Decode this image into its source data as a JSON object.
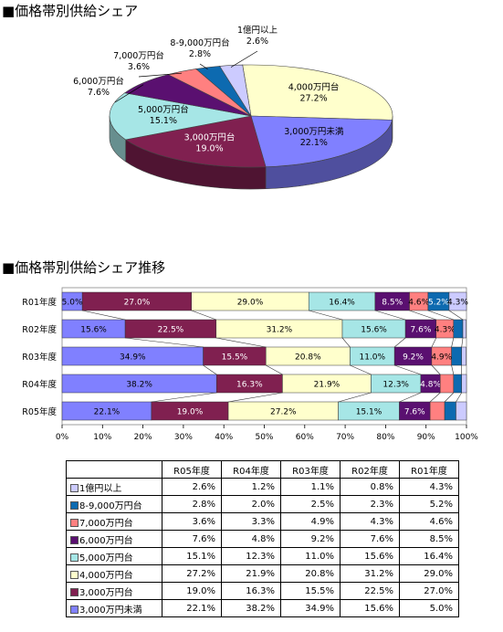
{
  "sections": {
    "pie_title": "■価格帯別供給シェア",
    "bar_title": "■価格帯別供給シェア推移"
  },
  "categories": [
    "3,000万円未満",
    "4,000万円台",
    "5,000万円台",
    "6,000万円台",
    "7,000万円台",
    "8-9,000万円台",
    "1億円以上"
  ],
  "legend_labels": [
    "1億円以上",
    "8-9,000万円台",
    "7,000万円台",
    "6,000万円台",
    "5,000万円台",
    "4,000万円台",
    "3,000万円台",
    "3,000万円未満"
  ],
  "colors": {
    "3,000万円未満": "#8080ff",
    "3,000万円台": "#802050",
    "4,000万円台": "#ffffcc",
    "5,000万円台": "#a6e6e6",
    "6,000万円台": "#5a1070",
    "7,000万円台": "#ff8080",
    "8-9,000万円台": "#0d6ab0",
    "1億円以上": "#cccbff"
  },
  "chart_data": [
    {
      "type": "pie",
      "slices": [
        {
          "label": "4,000万円台",
          "value": 27.2,
          "value_label": "27.2%"
        },
        {
          "label": "3,000万円未満",
          "value": 22.1,
          "value_label": "22.1%"
        },
        {
          "label": "3,000万円台",
          "value": 19.0,
          "value_label": "19.0%"
        },
        {
          "label": "5,000万円台",
          "value": 15.1,
          "value_label": "15.1%"
        },
        {
          "label": "6,000万円台",
          "value": 7.6,
          "value_label": "7.6%"
        },
        {
          "label": "7,000万円台",
          "value": 3.6,
          "value_label": "3.6%"
        },
        {
          "label": "8-9,000万円台",
          "value": 2.8,
          "value_label": "2.8%"
        },
        {
          "label": "1億円以上",
          "value": 2.6,
          "value_label": "2.6%"
        }
      ]
    },
    {
      "type": "bar",
      "stacked": "percent",
      "orientation": "horizontal",
      "categories": [
        "R01年度",
        "R02年度",
        "R03年度",
        "R04年度",
        "R05年度"
      ],
      "xlim": [
        0,
        100
      ],
      "xticks": [
        "0%",
        "10%",
        "20%",
        "30%",
        "40%",
        "50%",
        "60%",
        "70%",
        "80%",
        "90%",
        "100%"
      ],
      "series": [
        {
          "name": "3,000万円未満",
          "values": [
            5.0,
            15.6,
            34.9,
            38.2,
            22.1
          ],
          "labels": [
            "5.0%",
            "15.6%",
            "34.9%",
            "38.2%",
            "22.1%"
          ]
        },
        {
          "name": "3,000万円台",
          "values": [
            27.0,
            22.5,
            15.5,
            16.3,
            19.0
          ],
          "labels": [
            "27.0%",
            "22.5%",
            "15.5%",
            "16.3%",
            "19.0%"
          ]
        },
        {
          "name": "4,000万円台",
          "values": [
            29.0,
            31.2,
            20.8,
            21.9,
            27.2
          ],
          "labels": [
            "29.0%",
            "31.2%",
            "20.8%",
            "21.9%",
            "27.2%"
          ]
        },
        {
          "name": "5,000万円台",
          "values": [
            16.4,
            15.6,
            11.0,
            12.3,
            15.1
          ],
          "labels": [
            "16.4%",
            "15.6%",
            "11.0%",
            "12.3%",
            "15.1%"
          ]
        },
        {
          "name": "6,000万円台",
          "values": [
            8.5,
            7.6,
            9.2,
            4.8,
            7.6
          ],
          "labels": [
            "8.5%",
            "7.6%",
            "9.2%",
            "4.8%",
            "7.6%"
          ]
        },
        {
          "name": "7,000万円台",
          "values": [
            4.6,
            4.3,
            4.9,
            3.3,
            3.6
          ],
          "labels": [
            "4.6%",
            "4.3%",
            "4.9%",
            "",
            ""
          ]
        },
        {
          "name": "8-9,000万円台",
          "values": [
            5.2,
            2.3,
            2.5,
            2.0,
            2.8
          ],
          "labels": [
            "5.2%",
            "",
            "",
            "",
            ""
          ]
        },
        {
          "name": "1億円以上",
          "values": [
            4.3,
            0.8,
            1.1,
            1.2,
            2.6
          ],
          "labels": [
            "4.3%",
            "",
            "",
            "",
            ""
          ]
        }
      ]
    },
    {
      "type": "table",
      "columns": [
        "R05年度",
        "R04年度",
        "R03年度",
        "R02年度",
        "R01年度"
      ],
      "rows": [
        {
          "label": "1億円以上",
          "values": [
            "2.6%",
            "1.2%",
            "1.1%",
            "0.8%",
            "4.3%"
          ]
        },
        {
          "label": "8-9,000万円台",
          "values": [
            "2.8%",
            "2.0%",
            "2.5%",
            "2.3%",
            "5.2%"
          ]
        },
        {
          "label": "7,000万円台",
          "values": [
            "3.6%",
            "3.3%",
            "4.9%",
            "4.3%",
            "4.6%"
          ]
        },
        {
          "label": "6,000万円台",
          "values": [
            "7.6%",
            "4.8%",
            "9.2%",
            "7.6%",
            "8.5%"
          ]
        },
        {
          "label": "5,000万円台",
          "values": [
            "15.1%",
            "12.3%",
            "11.0%",
            "15.6%",
            "16.4%"
          ]
        },
        {
          "label": "4,000万円台",
          "values": [
            "27.2%",
            "21.9%",
            "20.8%",
            "31.2%",
            "29.0%"
          ]
        },
        {
          "label": "3,000万円台",
          "values": [
            "19.0%",
            "16.3%",
            "15.5%",
            "22.5%",
            "27.0%"
          ]
        },
        {
          "label": "3,000万円未満",
          "values": [
            "22.1%",
            "38.2%",
            "34.9%",
            "15.6%",
            "5.0%"
          ]
        }
      ]
    }
  ]
}
